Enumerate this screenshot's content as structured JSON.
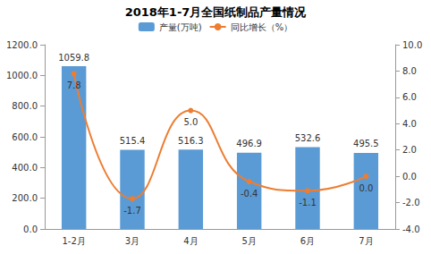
{
  "chart_data": {
    "type": "bar",
    "title": "2018年1-7月全国纸制品产量情况",
    "categories": [
      "1-2月",
      "3月",
      "4月",
      "5月",
      "6月",
      "7月"
    ],
    "series": [
      {
        "name": "产量(万吨)",
        "type": "bar",
        "color": "#5b9bd5",
        "values": [
          1059.8,
          515.4,
          516.3,
          496.9,
          532.6,
          495.5
        ]
      },
      {
        "name": "同比增长（%）",
        "type": "line",
        "axis": "y2",
        "color": "#ed7d31",
        "marker": "circle",
        "values": [
          7.8,
          -1.7,
          5.0,
          -0.4,
          -1.1,
          0.0
        ],
        "value_labels": [
          "7.8",
          "-1.7",
          "5.0",
          "-0.4",
          "-1.1",
          "0.0"
        ]
      }
    ],
    "ylim": [
      0,
      1200
    ],
    "yticks": [
      {
        "value": 0,
        "label": "0.0"
      },
      {
        "value": 200,
        "label": "200.0"
      },
      {
        "value": 400,
        "label": "400.0"
      },
      {
        "value": 600,
        "label": "600.0"
      },
      {
        "value": 800,
        "label": "800.0"
      },
      {
        "value": 1000,
        "label": "1000.0"
      },
      {
        "value": 1200,
        "label": "1200.0"
      }
    ],
    "y2lim": [
      -4,
      10
    ],
    "y2ticks": [
      {
        "value": -4,
        "label": "-4.0"
      },
      {
        "value": -2,
        "label": "-2.0"
      },
      {
        "value": 0,
        "label": "0.0"
      },
      {
        "value": 2,
        "label": "2.0"
      },
      {
        "value": 4,
        "label": "4.0"
      },
      {
        "value": 6,
        "label": "6.0"
      },
      {
        "value": 8,
        "label": "8.0"
      },
      {
        "value": 10,
        "label": "10.0"
      }
    ],
    "legend": "top",
    "grid": false,
    "data_labels": true
  }
}
